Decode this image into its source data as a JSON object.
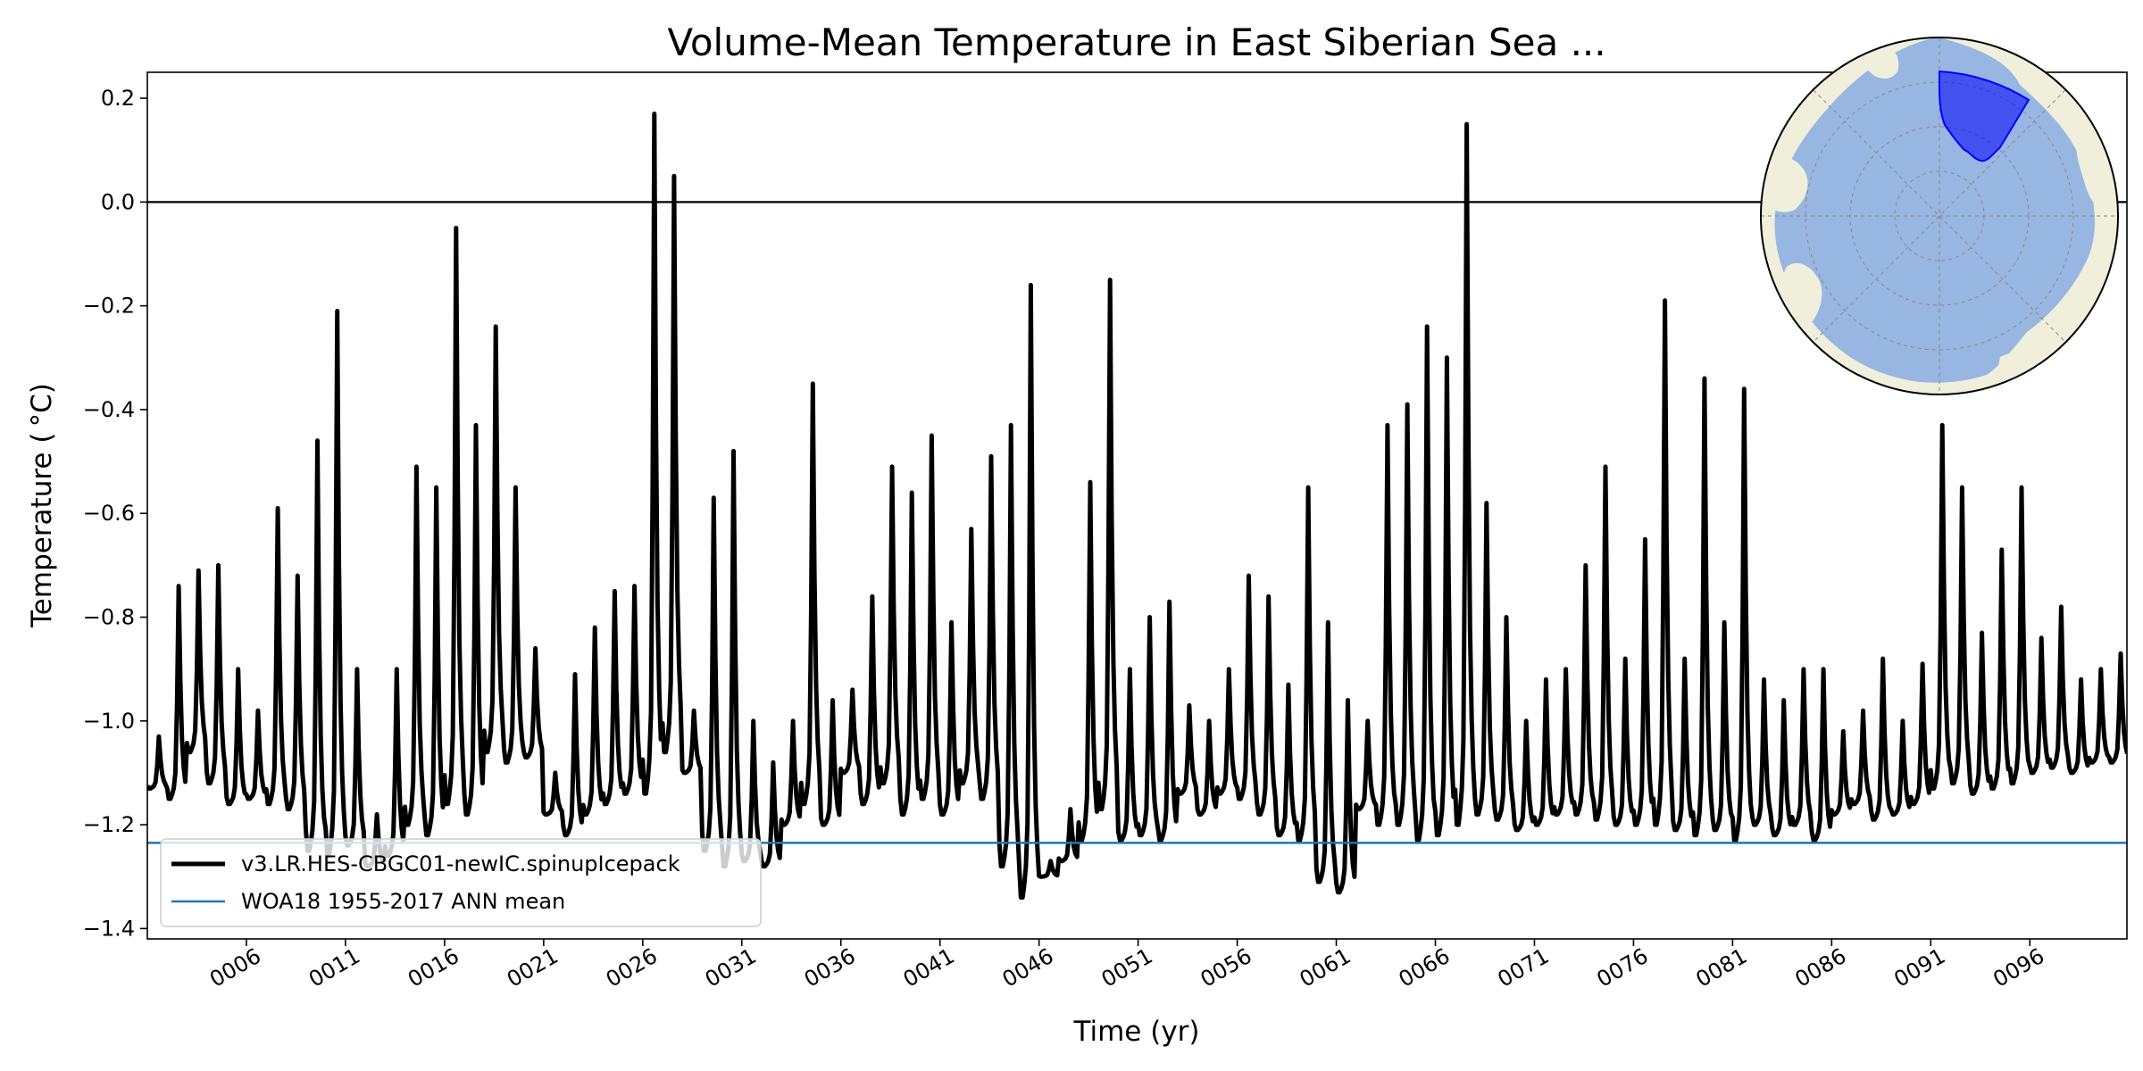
{
  "chart_data": {
    "type": "line",
    "title": "Volume-Mean Temperature in East Siberian Sea ...",
    "xlabel": "Time (yr)",
    "ylabel": "Temperature ($^\\circ$C)",
    "ylabel_display": "Temperature ( °C)",
    "xlim": [
      1,
      100.9
    ],
    "ylim": [
      -1.42,
      0.25
    ],
    "x_ticks": [
      6,
      11,
      16,
      21,
      26,
      31,
      36,
      41,
      46,
      51,
      56,
      61,
      66,
      71,
      76,
      81,
      86,
      91,
      96
    ],
    "x_tick_labels": [
      "0006",
      "0011",
      "0016",
      "0021",
      "0026",
      "0031",
      "0036",
      "0041",
      "0046",
      "0051",
      "0056",
      "0061",
      "0066",
      "0071",
      "0076",
      "0081",
      "0086",
      "0091",
      "0096"
    ],
    "y_ticks": [
      0.2,
      0.0,
      -0.2,
      -0.4,
      -0.6,
      -0.8,
      -1.0,
      -1.2,
      -1.4
    ],
    "y_tick_labels": [
      "0.2",
      "0.0",
      "−0.2",
      "−0.4",
      "−0.6",
      "−0.8",
      "−1.0",
      "−1.2",
      "−1.4"
    ],
    "zero_line": 0.0,
    "reference_line": {
      "name": "WOA18 1955-2017 ANN mean",
      "value": -1.235,
      "color": "#1f77b4"
    },
    "legend_location": "lower-left",
    "series": [
      {
        "name": "v3.LR.HES-CBGC01-newIC.spinupIcepack",
        "color": "#000000",
        "description": "monthly time series; annual summer peak values per model year",
        "years": [
          1,
          2,
          3,
          4,
          5,
          6,
          7,
          8,
          9,
          10,
          11,
          12,
          13,
          14,
          15,
          16,
          17,
          18,
          19,
          20,
          21,
          22,
          23,
          24,
          25,
          26,
          27,
          28,
          29,
          30,
          31,
          32,
          33,
          34,
          35,
          36,
          37,
          38,
          39,
          40,
          41,
          42,
          43,
          44,
          45,
          46,
          47,
          48,
          49,
          50,
          51,
          52,
          53,
          54,
          55,
          56,
          57,
          58,
          59,
          60,
          61,
          62,
          63,
          64,
          65,
          66,
          67,
          68,
          69,
          70,
          71,
          72,
          73,
          74,
          75,
          76,
          77,
          78,
          79,
          80,
          81,
          82,
          83,
          84,
          85,
          86,
          87,
          88,
          89,
          90,
          91,
          92,
          93,
          94,
          95,
          96,
          97,
          98,
          99,
          100
        ],
        "peaks": [
          -1.03,
          -0.74,
          -0.71,
          -0.7,
          -0.9,
          -0.98,
          -0.59,
          -0.72,
          -0.46,
          -0.21,
          -0.9,
          -1.18,
          -0.9,
          -0.51,
          -0.55,
          -0.05,
          -0.43,
          -0.24,
          -0.55,
          -0.86,
          -1.1,
          -0.91,
          -0.82,
          -0.75,
          -0.74,
          0.17,
          0.05,
          -0.98,
          -0.57,
          -0.48,
          -1.0,
          -1.08,
          -1.0,
          -0.35,
          -0.96,
          -0.94,
          -0.76,
          -0.51,
          -0.56,
          -0.45,
          -0.81,
          -0.63,
          -0.49,
          -0.43,
          -0.16,
          -1.27,
          -1.17,
          -0.54,
          -0.15,
          -0.9,
          -0.8,
          -0.77,
          -0.97,
          -1.0,
          -0.9,
          -0.72,
          -0.76,
          -0.93,
          -0.55,
          -0.81,
          -0.96,
          -1.0,
          -0.43,
          -0.39,
          -0.24,
          -0.3,
          0.15,
          -0.58,
          -0.8,
          -1.0,
          -0.92,
          -0.9,
          -0.7,
          -0.51,
          -0.88,
          -0.65,
          -0.19,
          -0.88,
          -0.34,
          -0.81,
          -0.36,
          -0.92,
          -0.96,
          -0.9,
          -0.9,
          -1.02,
          -0.98,
          -0.88,
          -1.0,
          -0.89,
          -0.43,
          -0.55,
          -0.83,
          -0.67,
          -0.55,
          -0.84,
          -0.78,
          -0.92,
          -0.9,
          -0.87
        ],
        "troughs": [
          -1.13,
          -1.15,
          -1.06,
          -1.12,
          -1.16,
          -1.15,
          -1.16,
          -1.17,
          -1.25,
          -1.26,
          -1.24,
          -1.28,
          -1.26,
          -1.2,
          -1.22,
          -1.16,
          -1.18,
          -1.06,
          -1.08,
          -1.07,
          -1.18,
          -1.22,
          -1.18,
          -1.16,
          -1.14,
          -1.14,
          -1.06,
          -1.1,
          -1.25,
          -1.28,
          -1.27,
          -1.28,
          -1.2,
          -1.16,
          -1.2,
          -1.1,
          -1.16,
          -1.12,
          -1.18,
          -1.15,
          -1.18,
          -1.12,
          -1.15,
          -1.28,
          -1.34,
          -1.3,
          -1.27,
          -1.23,
          -1.17,
          -1.23,
          -1.22,
          -1.23,
          -1.14,
          -1.18,
          -1.14,
          -1.15,
          -1.18,
          -1.22,
          -1.23,
          -1.31,
          -1.33,
          -1.17,
          -1.2,
          -1.2,
          -1.23,
          -1.22,
          -1.2,
          -1.18,
          -1.19,
          -1.21,
          -1.2,
          -1.18,
          -1.18,
          -1.19,
          -1.2,
          -1.2,
          -1.2,
          -1.21,
          -1.22,
          -1.21,
          -1.23,
          -1.2,
          -1.22,
          -1.2,
          -1.23,
          -1.18,
          -1.16,
          -1.19,
          -1.18,
          -1.16,
          -1.13,
          -1.12,
          -1.14,
          -1.13,
          -1.12,
          -1.1,
          -1.09,
          -1.1,
          -1.08,
          -1.08
        ]
      }
    ],
    "inset_map": {
      "projection": "north-polar-stereographic",
      "region": "East Siberian Sea",
      "region_color": "#0000ff"
    }
  }
}
